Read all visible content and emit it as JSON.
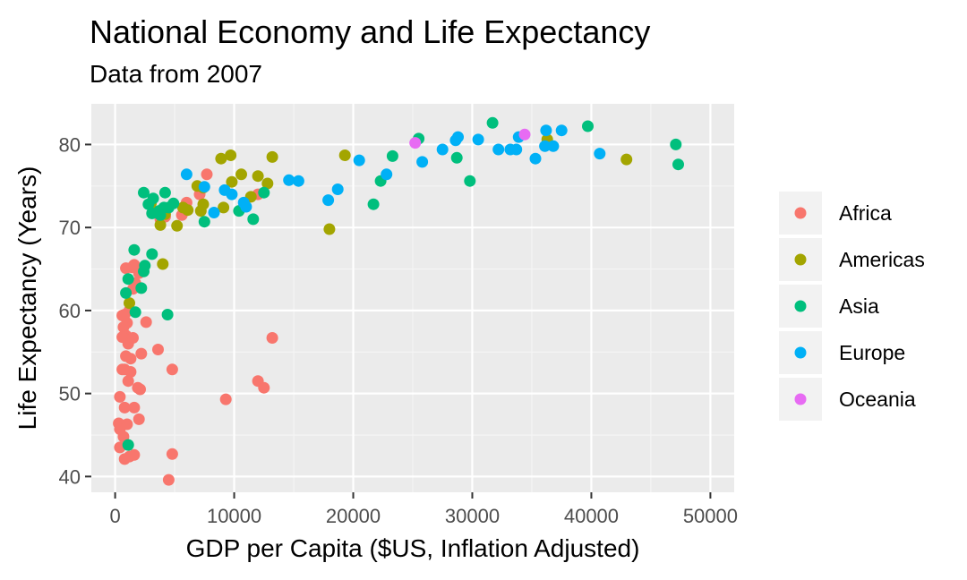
{
  "colors": {
    "panel_bg": "#ebebeb",
    "grid_major": "#ffffff",
    "grid_minor": "#f5f5f5",
    "tick": "#333333",
    "legend_key_bg": "#f2f2f2"
  },
  "chart_data": {
    "type": "scatter",
    "title": "National Economy and Life Expectancy",
    "subtitle": "Data from 2007",
    "xlabel": "GDP per Capita ($US, Inflation Adjusted)",
    "ylabel": "Life Expectancy (Years)",
    "xlim": [
      -2000,
      52000
    ],
    "ylim": [
      38.1,
      84.9
    ],
    "x_ticks": [
      0,
      10000,
      20000,
      30000,
      40000,
      50000
    ],
    "x_tick_labels": [
      "0",
      "10000",
      "20000",
      "30000",
      "40000",
      "50000"
    ],
    "y_ticks": [
      40,
      50,
      60,
      70,
      80
    ],
    "y_tick_labels": [
      "40",
      "50",
      "60",
      "70",
      "80"
    ],
    "grid": true,
    "legend_position": "right",
    "series": [
      {
        "name": "Africa",
        "color": "#F8766D",
        "points": [
          [
            7700,
            76.4
          ],
          [
            7100,
            74.0
          ],
          [
            6000,
            73.0
          ],
          [
            5600,
            71.5
          ],
          [
            4200,
            71.3
          ],
          [
            3800,
            71.0
          ],
          [
            12000,
            74.0
          ],
          [
            1600,
            65.5
          ],
          [
            1400,
            65.2
          ],
          [
            900,
            65.1
          ],
          [
            2000,
            64.5
          ],
          [
            1700,
            63.3
          ],
          [
            1500,
            62.6
          ],
          [
            1200,
            60.0
          ],
          [
            2600,
            58.6
          ],
          [
            600,
            59.4
          ],
          [
            800,
            59.5
          ],
          [
            1000,
            58.5
          ],
          [
            700,
            58.0
          ],
          [
            900,
            57.0
          ],
          [
            600,
            56.8
          ],
          [
            1100,
            56.0
          ],
          [
            1500,
            56.7
          ],
          [
            1300,
            54.2
          ],
          [
            900,
            54.5
          ],
          [
            2200,
            54.8
          ],
          [
            3600,
            55.3
          ],
          [
            13200,
            56.7
          ],
          [
            600,
            52.9
          ],
          [
            800,
            52.9
          ],
          [
            1300,
            52.6
          ],
          [
            1100,
            51.5
          ],
          [
            1900,
            50.7
          ],
          [
            2100,
            50.5
          ],
          [
            4800,
            52.9
          ],
          [
            12000,
            51.5
          ],
          [
            12500,
            50.7
          ],
          [
            400,
            49.6
          ],
          [
            1600,
            48.3
          ],
          [
            800,
            48.3
          ],
          [
            9300,
            49.3
          ],
          [
            300,
            46.4
          ],
          [
            500,
            46.2
          ],
          [
            1000,
            46.3
          ],
          [
            2000,
            46.9
          ],
          [
            400,
            45.7
          ],
          [
            700,
            44.8
          ],
          [
            400,
            43.5
          ],
          [
            800,
            42.1
          ],
          [
            1200,
            42.4
          ],
          [
            1600,
            42.6
          ],
          [
            4800,
            42.7
          ],
          [
            4500,
            39.6
          ]
        ]
      },
      {
        "name": "Americas",
        "color": "#A3A500",
        "points": [
          [
            9700,
            78.7
          ],
          [
            8900,
            78.3
          ],
          [
            13200,
            78.5
          ],
          [
            19300,
            78.7
          ],
          [
            36300,
            80.6
          ],
          [
            42950,
            78.2
          ],
          [
            6900,
            75.0
          ],
          [
            7400,
            74.8
          ],
          [
            9800,
            75.5
          ],
          [
            10600,
            76.4
          ],
          [
            12000,
            76.2
          ],
          [
            12800,
            75.3
          ],
          [
            11400,
            73.7
          ],
          [
            5700,
            72.4
          ],
          [
            6100,
            72.1
          ],
          [
            7200,
            72.0
          ],
          [
            7400,
            72.8
          ],
          [
            9100,
            72.4
          ],
          [
            3800,
            70.3
          ],
          [
            5200,
            70.2
          ],
          [
            18000,
            69.8
          ],
          [
            3000,
            72.9
          ],
          [
            4200,
            71.6
          ],
          [
            4000,
            65.6
          ],
          [
            1200,
            60.9
          ]
        ]
      },
      {
        "name": "Asia",
        "color": "#00BF7D",
        "points": [
          [
            31700,
            82.6
          ],
          [
            39700,
            82.2
          ],
          [
            25500,
            80.7
          ],
          [
            47100,
            80.0
          ],
          [
            47300,
            77.6
          ],
          [
            28700,
            78.4
          ],
          [
            29800,
            75.6
          ],
          [
            23300,
            78.6
          ],
          [
            22300,
            75.6
          ],
          [
            21700,
            72.8
          ],
          [
            12500,
            74.2
          ],
          [
            11600,
            71.0
          ],
          [
            10400,
            72.0
          ],
          [
            7500,
            70.7
          ],
          [
            4200,
            74.2
          ],
          [
            2400,
            74.2
          ],
          [
            3200,
            73.5
          ],
          [
            4900,
            72.9
          ],
          [
            3100,
            71.7
          ],
          [
            4100,
            72.4
          ],
          [
            3700,
            72.0
          ],
          [
            3800,
            71.5
          ],
          [
            2800,
            72.8
          ],
          [
            4500,
            72.4
          ],
          [
            1600,
            67.3
          ],
          [
            3100,
            66.8
          ],
          [
            2500,
            65.4
          ],
          [
            2400,
            64.7
          ],
          [
            1100,
            63.8
          ],
          [
            2200,
            62.7
          ],
          [
            900,
            62.1
          ],
          [
            1700,
            59.8
          ],
          [
            4400,
            59.5
          ],
          [
            1100,
            43.8
          ]
        ]
      },
      {
        "name": "Europe",
        "color": "#00B0F6",
        "points": [
          [
            36200,
            81.7
          ],
          [
            37500,
            81.7
          ],
          [
            33900,
            80.9
          ],
          [
            28800,
            80.9
          ],
          [
            28600,
            80.5
          ],
          [
            30500,
            80.6
          ],
          [
            36100,
            79.8
          ],
          [
            36800,
            79.8
          ],
          [
            33200,
            79.4
          ],
          [
            33700,
            79.4
          ],
          [
            32200,
            79.4
          ],
          [
            27500,
            79.4
          ],
          [
            40700,
            78.9
          ],
          [
            35300,
            78.3
          ],
          [
            25800,
            77.9
          ],
          [
            20500,
            78.1
          ],
          [
            22800,
            76.4
          ],
          [
            18700,
            74.6
          ],
          [
            17900,
            73.3
          ],
          [
            14600,
            75.7
          ],
          [
            15400,
            75.6
          ],
          [
            9800,
            74.0
          ],
          [
            9200,
            74.5
          ],
          [
            7500,
            74.9
          ],
          [
            6000,
            76.4
          ],
          [
            10800,
            73.0
          ],
          [
            11000,
            72.5
          ],
          [
            8300,
            71.8
          ]
        ]
      },
      {
        "name": "Oceania",
        "color": "#E76BF3",
        "points": [
          [
            34400,
            81.2
          ],
          [
            25200,
            80.2
          ]
        ]
      }
    ]
  }
}
